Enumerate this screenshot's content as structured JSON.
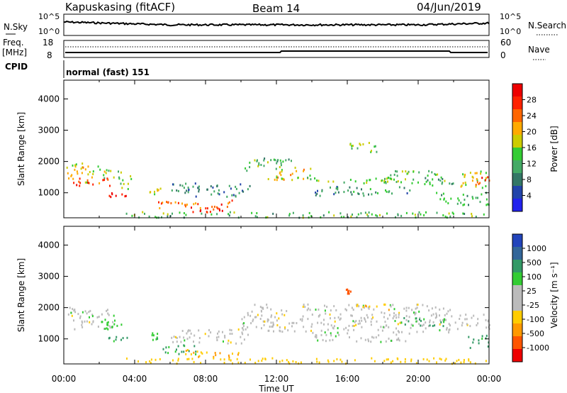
{
  "header": {
    "station": "Kapuskasing (fitACF)",
    "beam": "Beam 14",
    "date": "04/Jun/2019"
  },
  "noise_panel": {
    "left_label": "N.Sky",
    "right_label": "N.Search",
    "ticks_left": [
      "10^5",
      "10^0"
    ],
    "ticks_right": [
      "10^5",
      "10^0"
    ]
  },
  "freq_panel": {
    "left_label_1": "Freq.",
    "left_label_2": "[MHz]",
    "right_label": "Nave",
    "ticks_left": [
      "18",
      "8"
    ],
    "ticks_right": [
      "60",
      "0"
    ]
  },
  "cpid_panel": {
    "left_label": "CPID",
    "text": "normal (fast) 151"
  },
  "colors": {
    "power": [
      "#2222ee",
      "#2244aa",
      "#337766",
      "#44aa66",
      "#33cc33",
      "#cccc00",
      "#ffaa00",
      "#ff6600",
      "#ff2200",
      "#ee0000"
    ],
    "velocity": [
      "#ee0000",
      "#ff5500",
      "#ff9900",
      "#ffcc00",
      "#bbbbbb",
      "#bbbbbb",
      "#33cc33",
      "#339966",
      "#336699",
      "#2244bb"
    ]
  },
  "chart_data": [
    {
      "type": "heatmap",
      "panel": "power",
      "ylabel": "Slant Range [km]",
      "colorbar_label": "Power [dB]",
      "colorbar_ticks": [
        "28",
        "24",
        "20",
        "16",
        "12",
        "8",
        "4"
      ],
      "xlim": [
        0,
        24
      ],
      "ylim": [
        200,
        4600
      ],
      "yticks": [
        1000,
        2000,
        3000,
        4000
      ],
      "regions": [
        {
          "t": [
            0.1,
            1.5
          ],
          "r": [
            1300,
            2000
          ],
          "p": 18
        },
        {
          "t": [
            1.5,
            2.8
          ],
          "r": [
            1450,
            1850
          ],
          "p": 15
        },
        {
          "t": [
            0.5,
            2.6
          ],
          "r": [
            1200,
            1500
          ],
          "p": 24
        },
        {
          "t": [
            2.5,
            3.5
          ],
          "r": [
            850,
            1050
          ],
          "p": 28
        },
        {
          "t": [
            3.0,
            3.8
          ],
          "r": [
            1100,
            1700
          ],
          "p": 14
        },
        {
          "t": [
            4.8,
            5.5
          ],
          "r": [
            950,
            1250
          ],
          "p": 16
        },
        {
          "t": [
            5.3,
            9.5
          ],
          "r": [
            500,
            750
          ],
          "p": 22
        },
        {
          "t": [
            7.0,
            9.0
          ],
          "r": [
            350,
            650
          ],
          "p": 26
        },
        {
          "t": [
            6.0,
            10.5
          ],
          "r": [
            850,
            1300
          ],
          "p": 8
        },
        {
          "t": [
            10.0,
            13.0
          ],
          "r": [
            1700,
            2100
          ],
          "p": 12
        },
        {
          "t": [
            11.5,
            14.0
          ],
          "r": [
            1400,
            1800
          ],
          "p": 18
        },
        {
          "t": [
            13.0,
            18.5
          ],
          "r": [
            1300,
            1500
          ],
          "p": 14
        },
        {
          "t": [
            14.0,
            19.5
          ],
          "r": [
            900,
            1200
          ],
          "p": 9
        },
        {
          "t": [
            18.0,
            21.5
          ],
          "r": [
            1300,
            1700
          ],
          "p": 13
        },
        {
          "t": [
            20.0,
            22.0
          ],
          "r": [
            1200,
            1500
          ],
          "p": 10
        },
        {
          "t": [
            22.3,
            24.0
          ],
          "r": [
            1100,
            1700
          ],
          "p": 16
        },
        {
          "t": [
            23.2,
            24.0
          ],
          "r": [
            1250,
            1500
          ],
          "p": 26
        },
        {
          "t": [
            21.0,
            24.0
          ],
          "r": [
            600,
            1000
          ],
          "p": 11
        },
        {
          "t": [
            3.5,
            24.0
          ],
          "r": [
            200,
            380
          ],
          "p": 12
        },
        {
          "t": [
            16.0,
            18.0
          ],
          "r": [
            2300,
            2600
          ],
          "p": 14
        }
      ]
    },
    {
      "type": "heatmap",
      "panel": "velocity",
      "ylabel": "Slant Range [km]",
      "xlabel": "Time UT",
      "colorbar_label": "Velocity [m s⁻¹]",
      "colorbar_ticks": [
        "1000",
        "500",
        "100",
        "25",
        "-25",
        "-100",
        "-500",
        "-1000"
      ],
      "xlim": [
        0,
        24
      ],
      "ylim": [
        200,
        4600
      ],
      "yticks": [
        1000,
        2000,
        3000,
        4000
      ],
      "xtick_labels": [
        "00:00",
        "04:00",
        "08:00",
        "12:00",
        "16:00",
        "20:00",
        "00:00"
      ],
      "regions": [
        {
          "t": [
            0.1,
            2.8
          ],
          "r": [
            1300,
            2000
          ],
          "v": 0
        },
        {
          "t": [
            2.0,
            3.5
          ],
          "r": [
            1300,
            1700
          ],
          "v": 60
        },
        {
          "t": [
            2.5,
            3.6
          ],
          "r": [
            850,
            1100
          ],
          "v": 120
        },
        {
          "t": [
            4.8,
            5.4
          ],
          "r": [
            950,
            1200
          ],
          "v": 80
        },
        {
          "t": [
            5.3,
            7.5
          ],
          "r": [
            500,
            800
          ],
          "v": 100
        },
        {
          "t": [
            6.8,
            10.0
          ],
          "r": [
            400,
            650
          ],
          "v": -100
        },
        {
          "t": [
            6.0,
            10.5
          ],
          "r": [
            850,
            1300
          ],
          "v": 0
        },
        {
          "t": [
            10.0,
            22.0
          ],
          "r": [
            1200,
            2100
          ],
          "v": 0
        },
        {
          "t": [
            14.0,
            19.5
          ],
          "r": [
            900,
            1200
          ],
          "v": 0
        },
        {
          "t": [
            16.5,
            18.5
          ],
          "r": [
            1900,
            2100
          ],
          "v": -100
        },
        {
          "t": [
            19.0,
            21.5
          ],
          "r": [
            1400,
            1700
          ],
          "v": 120
        },
        {
          "t": [
            22.0,
            24.0
          ],
          "r": [
            1300,
            1800
          ],
          "v": 0
        },
        {
          "t": [
            22.8,
            24.0
          ],
          "r": [
            700,
            1100
          ],
          "v": 120
        },
        {
          "t": [
            3.5,
            24.0
          ],
          "r": [
            200,
            380
          ],
          "v": -60
        },
        {
          "t": [
            15.8,
            16.2
          ],
          "r": [
            2400,
            2600
          ],
          "v": -600
        }
      ]
    }
  ]
}
